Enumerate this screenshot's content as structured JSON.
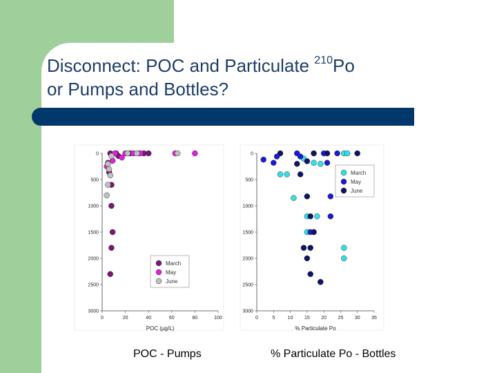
{
  "slide": {
    "title_line1": "Disconnect: POC and Particulate ",
    "title_sup": "210",
    "title_line1_end": "Po",
    "title_line2": "or Pumps and Bottles?",
    "caption_left": "POC - Pumps",
    "caption_right": "% Particulate Po - Bottles"
  },
  "colors": {
    "green_panel": "#9fcf9a",
    "title_bar": "#00386b",
    "title_text": "#1d3d68"
  },
  "chart_data": [
    {
      "type": "scatter",
      "title": "",
      "xlabel": "POC (µg/L)",
      "ylabel": "",
      "xlim": [
        0,
        100
      ],
      "ylim": [
        3000,
        0
      ],
      "x_ticks": [
        "0",
        "20",
        "40",
        "60",
        "80",
        "100"
      ],
      "y_ticks": [
        "0",
        "500",
        "1000",
        "1500",
        "2000",
        "2500",
        "3000"
      ],
      "legend_position": "bottom-center",
      "grid": false,
      "series": [
        {
          "name": "March",
          "color": "#7a1678",
          "points": [
            [
              7,
              0
            ],
            [
              12,
              0
            ],
            [
              14,
              50
            ],
            [
              24,
              0
            ],
            [
              36,
              0
            ],
            [
              40,
              0
            ],
            [
              5,
              180
            ],
            [
              6,
              360
            ],
            [
              8,
              600
            ],
            [
              8,
              1000
            ],
            [
              9,
              1500
            ],
            [
              8,
              1800
            ],
            [
              7,
              2300
            ]
          ]
        },
        {
          "name": "May",
          "color": "#e020dc",
          "points": [
            [
              17,
              80
            ],
            [
              20,
              0
            ],
            [
              27,
              0
            ],
            [
              31,
              0
            ],
            [
              33,
              0
            ],
            [
              63,
              0
            ],
            [
              80,
              0
            ],
            [
              9,
              140
            ],
            [
              11,
              0
            ],
            [
              4,
              250
            ]
          ]
        },
        {
          "name": "June",
          "color": "#c0c0c0",
          "points": [
            [
              5,
              200
            ],
            [
              6,
              300
            ],
            [
              7,
              420
            ],
            [
              5,
              600
            ],
            [
              4,
              800
            ],
            [
              22,
              0
            ],
            [
              30,
              0
            ],
            [
              65,
              0
            ],
            [
              8,
              50
            ]
          ]
        }
      ]
    },
    {
      "type": "scatter",
      "title": "",
      "xlabel": "% Particulate Po",
      "ylabel": "",
      "xlim": [
        0,
        35
      ],
      "ylim": [
        3000,
        0
      ],
      "x_ticks": [
        "0",
        "5",
        "10",
        "15",
        "20",
        "25",
        "30",
        "35"
      ],
      "y_ticks": [
        "0",
        "500",
        "1000",
        "1500",
        "2000",
        "2500",
        "3000"
      ],
      "legend_position": "top-right",
      "grid": false,
      "series": [
        {
          "name": "March",
          "color": "#33e0e8",
          "points": [
            [
              7,
              400
            ],
            [
              9,
              400
            ],
            [
              14,
              100
            ],
            [
              17,
              180
            ],
            [
              19,
              200
            ],
            [
              26,
              0
            ],
            [
              27,
              0
            ],
            [
              11,
              850
            ],
            [
              15,
              1200
            ],
            [
              15,
              1500
            ],
            [
              18,
              1200
            ],
            [
              26,
              1800
            ],
            [
              26,
              2000
            ],
            [
              17,
              1500
            ]
          ]
        },
        {
          "name": "May",
          "color": "#1a1ad6",
          "points": [
            [
              2,
              120
            ],
            [
              6,
              60
            ],
            [
              5,
              180
            ],
            [
              12,
              0
            ],
            [
              13,
              60
            ],
            [
              17,
              0
            ],
            [
              20,
              0
            ],
            [
              24,
              0
            ],
            [
              21,
              180
            ],
            [
              22,
              820
            ],
            [
              22,
              1200
            ],
            [
              16,
              1500
            ],
            [
              19,
              2450
            ]
          ]
        },
        {
          "name": "June",
          "color": "#0e1466",
          "points": [
            [
              7,
              0
            ],
            [
              12,
              200
            ],
            [
              15,
              150
            ],
            [
              17,
              0
            ],
            [
              21,
              0
            ],
            [
              30,
              0
            ],
            [
              13,
              400
            ],
            [
              15,
              820
            ],
            [
              16,
              1200
            ],
            [
              17,
              1500
            ],
            [
              14,
              1800
            ],
            [
              16,
              1800
            ],
            [
              15,
              2000
            ],
            [
              16,
              2300
            ],
            [
              19,
              2450
            ]
          ]
        }
      ]
    }
  ]
}
